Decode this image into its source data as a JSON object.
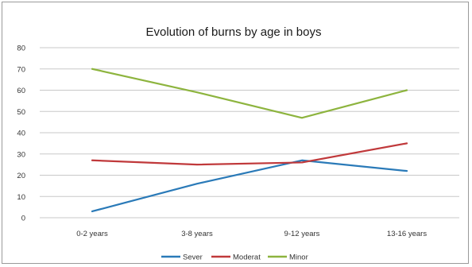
{
  "chart_data": {
    "type": "line",
    "title": "Evolution of burns by age in boys",
    "xlabel": "",
    "ylabel": "",
    "categories": [
      "0-2 years",
      "3-8 years",
      "9-12 years",
      "13-16 years"
    ],
    "ylim": [
      0,
      80
    ],
    "yticks": [
      0,
      10,
      20,
      30,
      40,
      50,
      60,
      70,
      80
    ],
    "grid": true,
    "legend_position": "bottom",
    "series": [
      {
        "name": "Sever",
        "color": "#2a7ab8",
        "values": [
          3,
          16,
          27,
          22
        ]
      },
      {
        "name": "Moderat",
        "color": "#c0393b",
        "values": [
          27,
          25,
          26,
          35
        ]
      },
      {
        "name": "Minor",
        "color": "#8db43e",
        "values": [
          70,
          59,
          47,
          60
        ]
      }
    ]
  }
}
